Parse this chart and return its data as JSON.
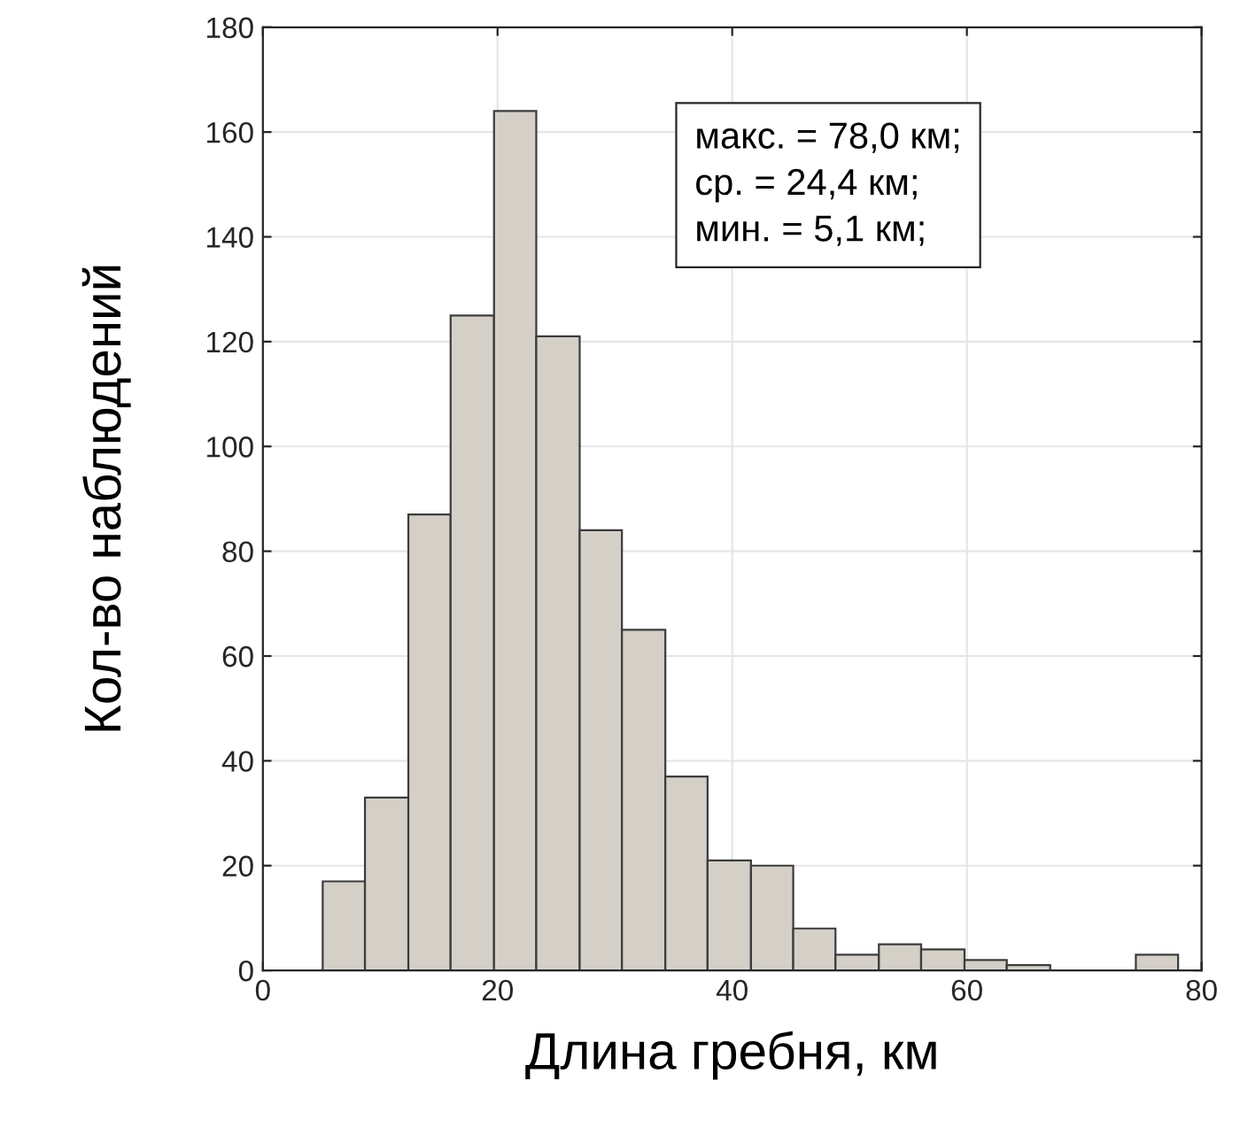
{
  "chart_data": {
    "type": "histogram",
    "xlabel": "Длина гребня, км",
    "ylabel": "Кол-во наблюдений",
    "bins": [
      5.1,
      8.7,
      12.4,
      16.0,
      19.7,
      23.3,
      27.0,
      30.6,
      34.3,
      37.9,
      41.6,
      45.2,
      48.8,
      52.5,
      56.1,
      59.8,
      63.4,
      67.1,
      74.4,
      78.0
    ],
    "values": [
      17,
      33,
      87,
      125,
      164,
      121,
      84,
      65,
      37,
      21,
      20,
      8,
      3,
      5,
      4,
      2,
      1,
      0,
      3
    ],
    "color": "#d4d0c8",
    "xlim": [
      0,
      80
    ],
    "xticks": [
      0,
      20,
      40,
      60,
      80
    ],
    "ylim": [
      0,
      180
    ],
    "yticks": [
      0,
      20,
      40,
      60,
      80,
      100,
      120,
      140,
      160,
      180
    ],
    "grid": true,
    "annotations": [
      "макс. = 78,0 км;",
      "ср. = 24,4 км;",
      "мин. = 5,1 км;"
    ]
  }
}
